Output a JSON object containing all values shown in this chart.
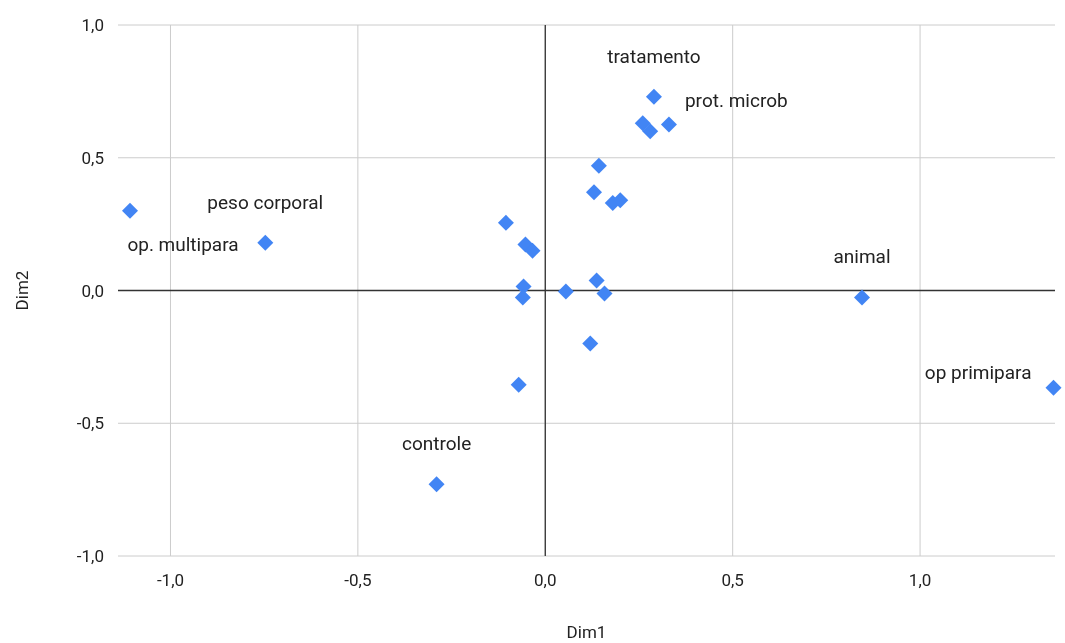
{
  "chart_data": {
    "type": "scatter",
    "xlabel": "Dim1",
    "ylabel": "Dim2",
    "x": [
      -1.108,
      -0.747,
      0.29,
      0.33,
      0.26,
      0.28,
      0.143,
      0.13,
      0.18,
      0.2,
      -0.105,
      -0.053,
      -0.034,
      -0.058,
      -0.06,
      0.055,
      0.137,
      0.158,
      0.12,
      -0.071,
      -0.29,
      0.845,
      1.356
    ],
    "values": [
      0.3,
      0.18,
      0.73,
      0.625,
      0.63,
      0.6,
      0.47,
      0.37,
      0.33,
      0.34,
      0.255,
      0.173,
      0.15,
      0.015,
      -0.026,
      -0.004,
      0.038,
      -0.011,
      -0.2,
      -0.355,
      -0.73,
      -0.026,
      -0.366
    ],
    "color": "#4285f4",
    "marker": "diamond",
    "grid": true,
    "xlim": [
      -1.14,
      1.36
    ],
    "xticks": [
      {
        "value": -1,
        "label": "-1,0"
      },
      {
        "value": -0.5,
        "label": "-0,5"
      },
      {
        "value": 0,
        "label": "0,0"
      },
      {
        "value": 0.5,
        "label": "0,5"
      },
      {
        "value": 1,
        "label": "1,0"
      }
    ],
    "ylim": [
      -1,
      1
    ],
    "yticks": [
      {
        "value": -1,
        "label": "-1,0"
      },
      {
        "value": -0.5,
        "label": "-0,5"
      },
      {
        "value": 0,
        "label": "0,0"
      },
      {
        "value": 0.5,
        "label": "0,5"
      },
      {
        "value": 1,
        "label": "1,0"
      }
    ],
    "annotations": [
      {
        "text": "tratamento",
        "x": 0.29,
        "y": 0.73
      },
      {
        "text": "prot. microb",
        "x": 0.33,
        "y": 0.625
      },
      {
        "text": "peso corporal",
        "x": -0.747,
        "y": 0.18
      },
      {
        "text": "op. multipara",
        "x": -1.108,
        "y": 0.3
      },
      {
        "text": "controle",
        "x": -0.29,
        "y": -0.73
      },
      {
        "text": "animal",
        "x": 0.845,
        "y": -0.026
      },
      {
        "text": "op primipara",
        "x": 1.356,
        "y": -0.366
      }
    ]
  }
}
